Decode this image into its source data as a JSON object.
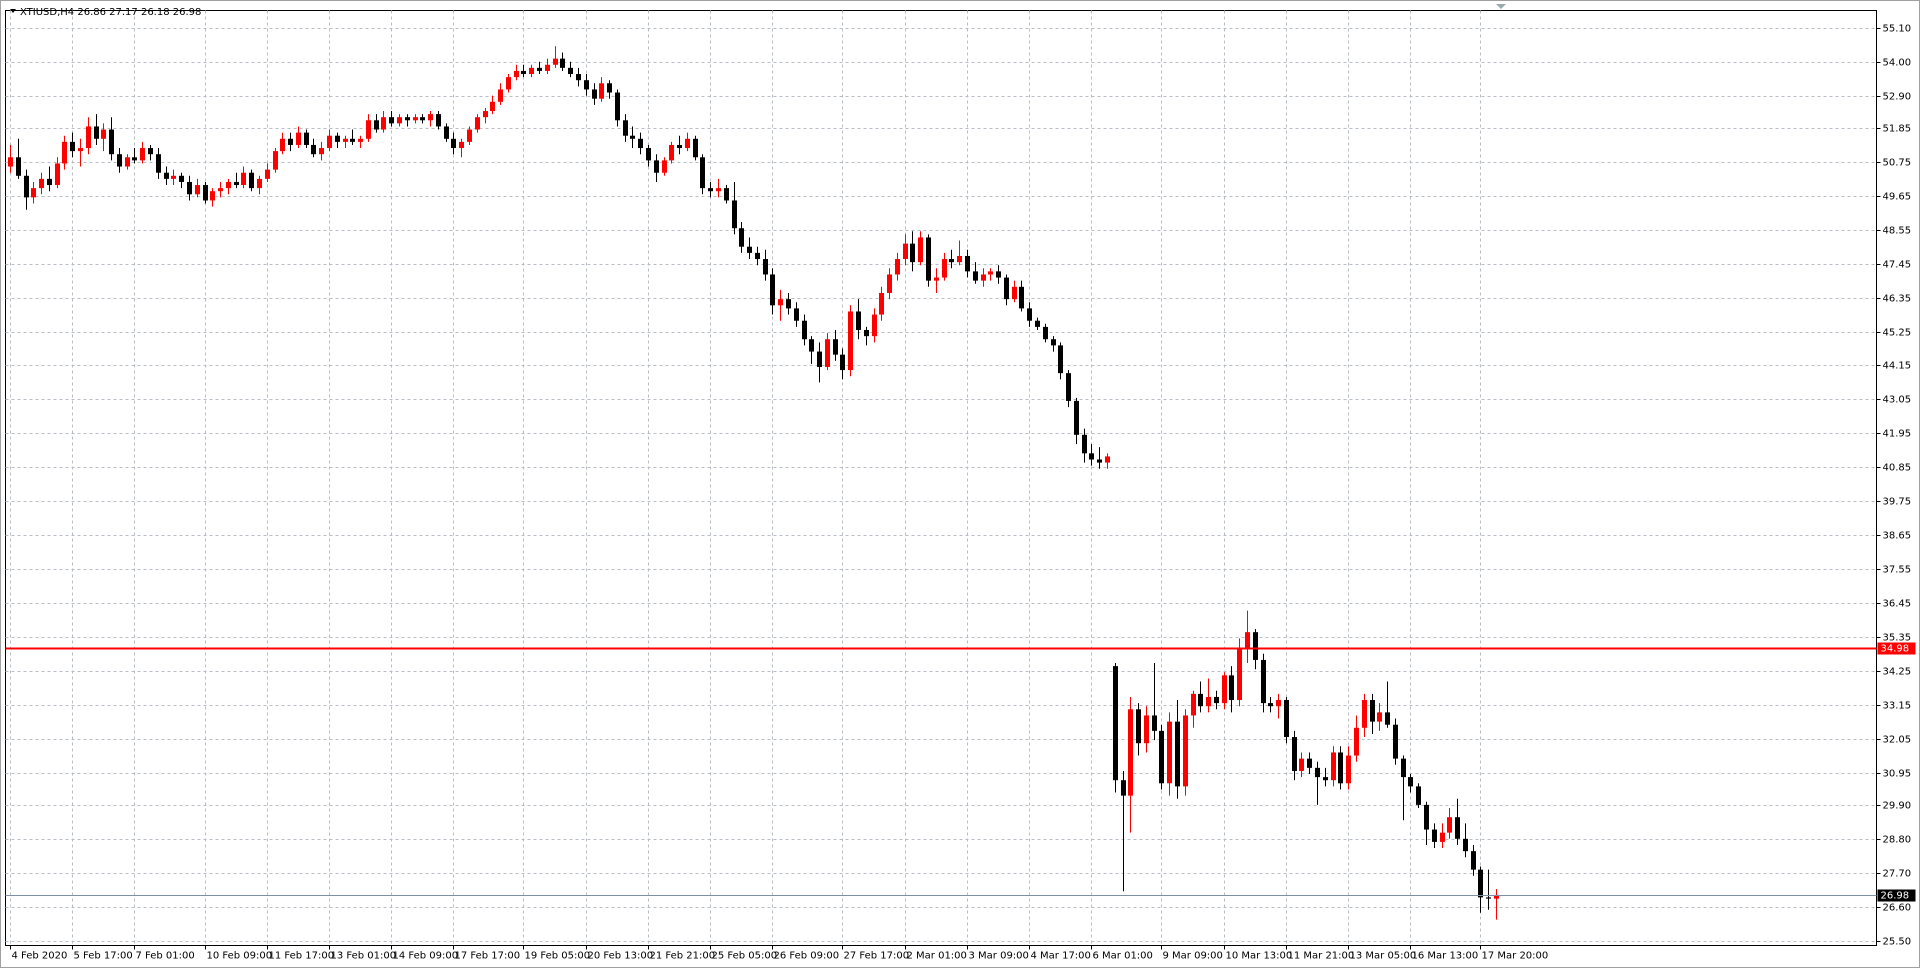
{
  "chart_data": {
    "type": "candlestick",
    "title": "XTIUSD,H4  26.86 27.17 26.18 26.98",
    "up_color": "#ff0000",
    "down_color": "#000000",
    "grid": true,
    "ylim": [
      25.34,
      55.66
    ],
    "yticks": [
      {
        "value": 55.1,
        "label": "55.10"
      },
      {
        "value": 54,
        "label": "54.00"
      },
      {
        "value": 52.9,
        "label": "52.90"
      },
      51.85,
      50.75,
      49.65,
      48.55,
      47.45,
      46.35,
      45.25,
      44.15,
      43.05,
      41.95,
      40.85,
      39.75,
      38.65,
      37.55,
      36.45,
      35.35,
      34.25,
      33.15,
      32.05,
      30.95,
      {
        "value": 29.9,
        "label": "29.90"
      },
      {
        "value": 28.8,
        "label": "28.80"
      },
      {
        "value": 27.7,
        "label": "27.70"
      },
      {
        "value": 26.6,
        "label": "26.60"
      },
      {
        "value": 25.5,
        "label": "25.50"
      }
    ],
    "price_lines": [
      {
        "value": 34.98,
        "color": "#ff0000"
      },
      {
        "value": 26.98,
        "color": "#7f8fa6"
      }
    ],
    "categories": [
      "4 Feb 2020",
      null,
      null,
      null,
      null,
      null,
      null,
      null,
      "5 Feb 17:00",
      null,
      null,
      null,
      null,
      null,
      null,
      null,
      "7 Feb 01:00",
      null,
      null,
      null,
      null,
      null,
      null,
      null,
      null,
      "10 Feb 09:00",
      null,
      null,
      null,
      null,
      null,
      null,
      null,
      "11 Feb 17:00",
      null,
      null,
      null,
      null,
      null,
      null,
      null,
      "13 Feb 01:00",
      null,
      null,
      null,
      null,
      null,
      null,
      null,
      "14 Feb 09:00",
      null,
      null,
      null,
      null,
      null,
      null,
      null,
      "17 Feb 17:00",
      null,
      null,
      null,
      null,
      null,
      null,
      null,
      null,
      "19 Feb 05:00",
      null,
      null,
      null,
      null,
      null,
      null,
      null,
      "20 Feb 13:00",
      null,
      null,
      null,
      null,
      null,
      null,
      null,
      "21 Feb 21:00",
      null,
      null,
      null,
      null,
      null,
      null,
      null,
      "25 Feb 05:00",
      null,
      null,
      null,
      null,
      null,
      null,
      null,
      "26 Feb 09:00",
      null,
      null,
      null,
      null,
      null,
      null,
      null,
      null,
      "27 Feb 17:00",
      null,
      null,
      null,
      null,
      null,
      null,
      null,
      "2 Mar 01:00",
      null,
      null,
      null,
      null,
      null,
      null,
      null,
      "3 Mar 09:00",
      null,
      null,
      null,
      null,
      null,
      null,
      null,
      "4 Mar 17:00",
      null,
      null,
      null,
      null,
      null,
      null,
      null,
      "6 Mar 01:00",
      null,
      null,
      null,
      null,
      null,
      null,
      null,
      null,
      "9 Mar 09:00",
      null,
      null,
      null,
      null,
      null,
      null,
      null,
      "10 Mar 13:00",
      null,
      null,
      null,
      null,
      null,
      null,
      null,
      "11 Mar 21:00",
      null,
      null,
      null,
      null,
      null,
      null,
      null,
      "13 Mar 05:00",
      null,
      null,
      null,
      null,
      null,
      null,
      null,
      "16 Mar 13:00",
      null,
      null,
      null,
      null,
      null,
      null,
      null,
      null,
      "17 Mar 20:00",
      null,
      null
    ],
    "ohlc": [
      [
        50.6,
        51.3,
        50.4,
        50.9
      ],
      [
        50.9,
        51.5,
        50.2,
        50.3
      ],
      [
        50.3,
        50.5,
        49.2,
        49.6
      ],
      [
        49.6,
        50.1,
        49.4,
        49.9
      ],
      [
        49.9,
        50.4,
        49.7,
        50.2
      ],
      [
        50.2,
        50.6,
        49.8,
        50.0
      ],
      [
        50.0,
        50.9,
        49.9,
        50.7
      ],
      [
        50.7,
        51.6,
        50.5,
        51.4
      ],
      [
        51.4,
        51.7,
        50.9,
        51.1
      ],
      [
        51.1,
        51.5,
        50.6,
        51.2
      ],
      [
        51.2,
        52.2,
        51.0,
        51.9
      ],
      [
        51.9,
        52.3,
        51.3,
        51.5
      ],
      [
        51.5,
        52.0,
        51.1,
        51.8
      ],
      [
        51.8,
        52.2,
        50.8,
        51.0
      ],
      [
        51.0,
        51.2,
        50.4,
        50.6
      ],
      [
        50.6,
        51.0,
        50.5,
        50.9
      ],
      [
        50.9,
        51.2,
        50.7,
        50.8
      ],
      [
        50.8,
        51.4,
        50.7,
        51.2
      ],
      [
        51.2,
        51.3,
        50.8,
        51.0
      ],
      [
        51.0,
        51.2,
        50.2,
        50.4
      ],
      [
        50.4,
        50.6,
        50.0,
        50.2
      ],
      [
        50.2,
        50.5,
        50.0,
        50.3
      ],
      [
        50.3,
        50.4,
        49.9,
        50.1
      ],
      [
        50.1,
        50.3,
        49.5,
        49.7
      ],
      [
        49.7,
        50.2,
        49.6,
        50.0
      ],
      [
        50.0,
        50.1,
        49.4,
        49.5
      ],
      [
        49.5,
        49.9,
        49.3,
        49.8
      ],
      [
        49.8,
        50.1,
        49.6,
        49.9
      ],
      [
        49.9,
        50.2,
        49.7,
        50.1
      ],
      [
        50.1,
        50.4,
        49.9,
        50.0
      ],
      [
        50.0,
        50.6,
        49.9,
        50.4
      ],
      [
        50.4,
        50.5,
        49.8,
        49.9
      ],
      [
        49.9,
        50.3,
        49.7,
        50.2
      ],
      [
        50.2,
        50.7,
        50.1,
        50.5
      ],
      [
        50.5,
        51.2,
        50.4,
        51.1
      ],
      [
        51.1,
        51.7,
        51.0,
        51.5
      ],
      [
        51.5,
        51.7,
        51.1,
        51.3
      ],
      [
        51.3,
        51.9,
        51.2,
        51.7
      ],
      [
        51.7,
        51.8,
        51.2,
        51.3
      ],
      [
        51.3,
        51.5,
        50.9,
        51.0
      ],
      [
        51.0,
        51.4,
        50.8,
        51.2
      ],
      [
        51.2,
        51.8,
        51.1,
        51.6
      ],
      [
        51.6,
        51.7,
        51.2,
        51.4
      ],
      [
        51.4,
        51.6,
        51.2,
        51.5
      ],
      [
        51.5,
        51.8,
        51.3,
        51.4
      ],
      [
        51.4,
        51.6,
        51.2,
        51.5
      ],
      [
        51.5,
        52.3,
        51.4,
        52.1
      ],
      [
        52.1,
        52.3,
        51.7,
        51.8
      ],
      [
        51.8,
        52.4,
        51.7,
        52.2
      ],
      [
        52.2,
        52.4,
        51.9,
        52.0
      ],
      [
        52.0,
        52.3,
        51.9,
        52.2
      ],
      [
        52.2,
        52.3,
        51.9,
        52.1
      ],
      [
        52.1,
        52.3,
        52.0,
        52.2
      ],
      [
        52.2,
        52.3,
        52.0,
        52.1
      ],
      [
        52.1,
        52.4,
        51.9,
        52.3
      ],
      [
        52.3,
        52.4,
        51.8,
        51.9
      ],
      [
        51.9,
        52.0,
        51.4,
        51.5
      ],
      [
        51.5,
        51.7,
        51.0,
        51.2
      ],
      [
        51.2,
        51.5,
        50.9,
        51.4
      ],
      [
        51.4,
        51.9,
        51.3,
        51.8
      ],
      [
        51.8,
        52.3,
        51.7,
        52.2
      ],
      [
        52.2,
        52.5,
        52.0,
        52.4
      ],
      [
        52.4,
        52.9,
        52.3,
        52.7
      ],
      [
        52.7,
        53.3,
        52.6,
        53.1
      ],
      [
        53.1,
        53.6,
        53.0,
        53.5
      ],
      [
        53.5,
        53.9,
        53.4,
        53.7
      ],
      [
        53.7,
        53.9,
        53.5,
        53.6
      ],
      [
        53.6,
        53.9,
        53.5,
        53.8
      ],
      [
        53.8,
        54.0,
        53.6,
        53.7
      ],
      [
        53.7,
        54.1,
        53.6,
        53.9
      ],
      [
        53.9,
        54.5,
        53.8,
        54.1
      ],
      [
        54.1,
        54.3,
        53.7,
        53.8
      ],
      [
        53.8,
        54.0,
        53.5,
        53.6
      ],
      [
        53.6,
        53.8,
        53.2,
        53.4
      ],
      [
        53.4,
        53.6,
        52.9,
        53.1
      ],
      [
        53.1,
        53.3,
        52.6,
        52.8
      ],
      [
        52.8,
        53.5,
        52.7,
        53.3
      ],
      [
        53.3,
        53.4,
        52.8,
        53.0
      ],
      [
        53.0,
        53.1,
        51.9,
        52.1
      ],
      [
        52.1,
        52.3,
        51.4,
        51.6
      ],
      [
        51.6,
        51.9,
        51.2,
        51.5
      ],
      [
        51.5,
        51.7,
        51.0,
        51.2
      ],
      [
        51.2,
        51.3,
        50.6,
        50.8
      ],
      [
        50.8,
        51.0,
        50.1,
        50.4
      ],
      [
        50.4,
        50.9,
        50.3,
        50.8
      ],
      [
        50.8,
        51.4,
        50.7,
        51.3
      ],
      [
        51.3,
        51.6,
        51.0,
        51.2
      ],
      [
        51.2,
        51.7,
        51.1,
        51.5
      ],
      [
        51.5,
        51.6,
        50.8,
        50.9
      ],
      [
        50.9,
        51.0,
        49.7,
        49.9
      ],
      [
        49.9,
        50.1,
        49.6,
        49.8
      ],
      [
        49.8,
        50.2,
        49.6,
        49.9
      ],
      [
        49.9,
        50.0,
        49.4,
        49.5
      ],
      [
        49.5,
        50.1,
        48.4,
        48.6
      ],
      [
        48.6,
        48.8,
        47.8,
        48.0
      ],
      [
        48.0,
        48.3,
        47.6,
        47.8
      ],
      [
        47.8,
        48.0,
        47.4,
        47.6
      ],
      [
        47.6,
        47.9,
        46.9,
        47.1
      ],
      [
        47.1,
        47.3,
        45.8,
        46.1
      ],
      [
        46.1,
        46.6,
        45.6,
        46.3
      ],
      [
        46.3,
        46.5,
        45.8,
        46.0
      ],
      [
        46.0,
        46.2,
        45.4,
        45.6
      ],
      [
        45.6,
        45.8,
        44.8,
        45.0
      ],
      [
        45.0,
        45.1,
        44.2,
        44.6
      ],
      [
        44.6,
        44.9,
        43.6,
        44.1
      ],
      [
        44.1,
        45.2,
        44.0,
        45.0
      ],
      [
        45.0,
        45.3,
        44.3,
        44.5
      ],
      [
        44.5,
        44.7,
        43.7,
        44.0
      ],
      [
        44.0,
        46.1,
        43.8,
        45.9
      ],
      [
        45.9,
        46.3,
        45.0,
        45.3
      ],
      [
        45.3,
        45.4,
        44.8,
        45.1
      ],
      [
        45.1,
        46.0,
        44.9,
        45.8
      ],
      [
        45.8,
        46.7,
        45.6,
        46.5
      ],
      [
        46.5,
        47.3,
        46.3,
        47.1
      ],
      [
        47.1,
        47.8,
        46.9,
        47.6
      ],
      [
        47.6,
        48.4,
        47.4,
        48.1
      ],
      [
        48.1,
        48.5,
        47.2,
        47.5
      ],
      [
        47.5,
        48.5,
        47.4,
        48.3
      ],
      [
        48.3,
        48.4,
        46.7,
        46.9
      ],
      [
        46.9,
        47.3,
        46.5,
        47.0
      ],
      [
        47.0,
        47.8,
        46.9,
        47.6
      ],
      [
        47.6,
        47.9,
        47.3,
        47.5
      ],
      [
        47.5,
        48.2,
        47.4,
        47.7
      ],
      [
        47.7,
        47.9,
        47.0,
        47.2
      ],
      [
        47.2,
        47.5,
        46.8,
        46.9
      ],
      [
        46.9,
        47.3,
        46.7,
        47.1
      ],
      [
        47.1,
        47.3,
        46.9,
        47.2
      ],
      [
        47.2,
        47.4,
        46.8,
        47.0
      ],
      [
        47.0,
        47.1,
        46.1,
        46.3
      ],
      [
        46.3,
        46.9,
        46.2,
        46.7
      ],
      [
        46.7,
        46.9,
        45.9,
        46.0
      ],
      [
        46.0,
        46.2,
        45.4,
        45.6
      ],
      [
        45.6,
        45.7,
        45.3,
        45.4
      ],
      [
        45.4,
        45.5,
        44.9,
        45.0
      ],
      [
        45.0,
        45.1,
        44.6,
        44.8
      ],
      [
        44.8,
        44.9,
        43.7,
        43.9
      ],
      [
        43.9,
        44.0,
        42.8,
        43.0
      ],
      [
        43.0,
        43.1,
        41.6,
        41.9
      ],
      [
        41.9,
        42.1,
        41.0,
        41.3
      ],
      [
        41.3,
        41.6,
        40.9,
        41.1
      ],
      [
        41.1,
        41.5,
        40.8,
        41.0
      ],
      [
        41.0,
        41.3,
        40.8,
        41.2
      ],
      [
        34.4,
        34.5,
        30.3,
        30.7
      ],
      [
        30.7,
        31.0,
        27.1,
        30.2
      ],
      [
        30.2,
        33.4,
        29.0,
        33.0
      ],
      [
        33.0,
        33.2,
        31.5,
        31.9
      ],
      [
        31.9,
        33.1,
        31.6,
        32.8
      ],
      [
        32.8,
        34.5,
        32.0,
        32.3
      ],
      [
        32.3,
        32.5,
        30.4,
        30.6
      ],
      [
        30.6,
        32.9,
        30.2,
        32.6
      ],
      [
        32.6,
        33.3,
        30.1,
        30.5
      ],
      [
        30.5,
        33.0,
        30.2,
        32.8
      ],
      [
        32.8,
        33.6,
        32.4,
        33.5
      ],
      [
        33.5,
        33.9,
        32.9,
        33.1
      ],
      [
        33.1,
        34.0,
        32.9,
        33.4
      ],
      [
        33.4,
        33.6,
        33.0,
        33.2
      ],
      [
        33.2,
        34.2,
        33.0,
        34.1
      ],
      [
        34.1,
        34.4,
        32.9,
        33.3
      ],
      [
        33.3,
        35.3,
        33.1,
        35.0
      ],
      [
        35.0,
        36.2,
        34.5,
        35.5
      ],
      [
        35.5,
        35.6,
        34.3,
        34.6
      ],
      [
        34.6,
        34.8,
        32.9,
        33.2
      ],
      [
        33.2,
        33.4,
        32.9,
        33.1
      ],
      [
        33.1,
        33.5,
        32.7,
        33.3
      ],
      [
        33.3,
        33.4,
        31.9,
        32.1
      ],
      [
        32.1,
        32.3,
        30.7,
        31.0
      ],
      [
        31.0,
        31.6,
        30.8,
        31.4
      ],
      [
        31.4,
        31.6,
        30.9,
        31.1
      ],
      [
        31.1,
        31.3,
        29.9,
        30.8
      ],
      [
        30.8,
        31.1,
        30.5,
        30.7
      ],
      [
        30.7,
        31.8,
        30.5,
        31.6
      ],
      [
        31.6,
        31.8,
        30.4,
        30.6
      ],
      [
        30.6,
        31.8,
        30.4,
        31.5
      ],
      [
        31.5,
        32.8,
        31.3,
        32.4
      ],
      [
        32.4,
        33.5,
        32.1,
        33.3
      ],
      [
        33.3,
        33.5,
        32.2,
        32.6
      ],
      [
        32.6,
        33.2,
        32.3,
        32.9
      ],
      [
        32.9,
        33.9,
        32.4,
        32.5
      ],
      [
        32.5,
        32.7,
        31.2,
        31.4
      ],
      [
        31.4,
        31.5,
        29.4,
        30.8
      ],
      [
        30.8,
        30.9,
        30.3,
        30.5
      ],
      [
        30.5,
        30.6,
        29.8,
        29.9
      ],
      [
        29.9,
        30.0,
        28.6,
        29.1
      ],
      [
        29.1,
        29.3,
        28.5,
        28.7
      ],
      [
        28.7,
        29.3,
        28.5,
        29.0
      ],
      [
        29.0,
        29.8,
        28.8,
        29.5
      ],
      [
        29.5,
        30.1,
        28.6,
        28.8
      ],
      [
        28.8,
        29.3,
        28.2,
        28.4
      ],
      [
        28.4,
        28.6,
        27.6,
        27.8
      ],
      [
        27.8,
        27.9,
        26.4,
        26.9
      ],
      [
        26.9,
        27.8,
        26.5,
        26.86
      ],
      [
        26.86,
        27.17,
        26.18,
        26.98
      ]
    ]
  }
}
